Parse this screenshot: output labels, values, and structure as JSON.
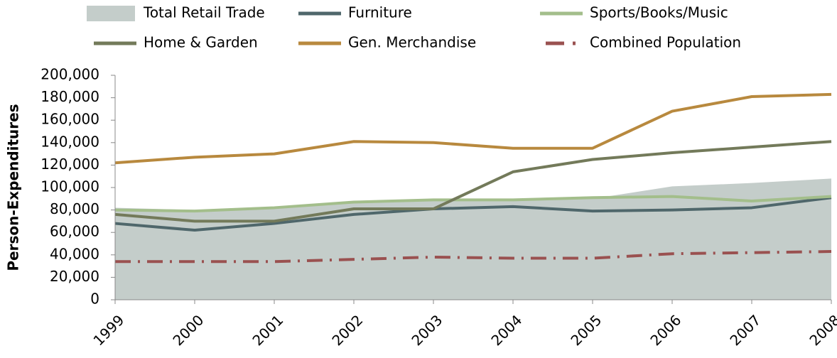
{
  "chart_data": {
    "type": "line",
    "y_label": "Person-Expenditures",
    "categories": [
      "1999",
      "2000",
      "2001",
      "2002",
      "2003",
      "2004",
      "2005",
      "2006",
      "2007",
      "2008"
    ],
    "series": [
      {
        "name": "Total Retail Trade",
        "kind": "area",
        "color": "#c4cdca",
        "values": [
          82000,
          80000,
          82000,
          87000,
          89000,
          89000,
          90000,
          101000,
          104000,
          108000
        ]
      },
      {
        "name": "Furniture",
        "kind": "line",
        "color": "#4f676b",
        "values": [
          68000,
          62000,
          68000,
          76000,
          81000,
          83000,
          79000,
          80000,
          82000,
          91000
        ]
      },
      {
        "name": "Sports/Books/Music",
        "kind": "line",
        "color": "#a3be8b",
        "values": [
          80000,
          79000,
          82000,
          87000,
          89000,
          89000,
          91000,
          92000,
          88000,
          92000
        ]
      },
      {
        "name": "Home & Garden",
        "kind": "line",
        "color": "#737a5a",
        "values": [
          76000,
          70000,
          70000,
          81000,
          81000,
          114000,
          125000,
          131000,
          136000,
          141000
        ]
      },
      {
        "name": "Gen. Merchandise",
        "kind": "line",
        "color": "#b8893e",
        "values": [
          122000,
          127000,
          130000,
          141000,
          140000,
          135000,
          135000,
          168000,
          181000,
          183000
        ]
      },
      {
        "name": "Combined Population",
        "kind": "line",
        "dash": "dashdot",
        "color": "#9a5150",
        "values": [
          34000,
          34000,
          34000,
          36000,
          38000,
          37000,
          37000,
          41000,
          42000,
          43000
        ]
      }
    ],
    "ylim": [
      0,
      200000
    ],
    "yticks": [
      0,
      {
        "value": 20000,
        "label": "20,000"
      },
      {
        "value": 40000,
        "label": "40,000"
      },
      {
        "value": 60000,
        "label": "60,000"
      },
      {
        "value": 80000,
        "label": "80,000"
      },
      {
        "value": 100000,
        "label": "100,000"
      },
      {
        "value": 120000,
        "label": "120,000"
      },
      {
        "value": 140000,
        "label": "140,000"
      },
      {
        "value": 160000,
        "label": "160,000"
      },
      {
        "value": 180000,
        "label": "180,000"
      },
      {
        "value": 200000,
        "label": "200,000"
      }
    ],
    "grid": false
  }
}
